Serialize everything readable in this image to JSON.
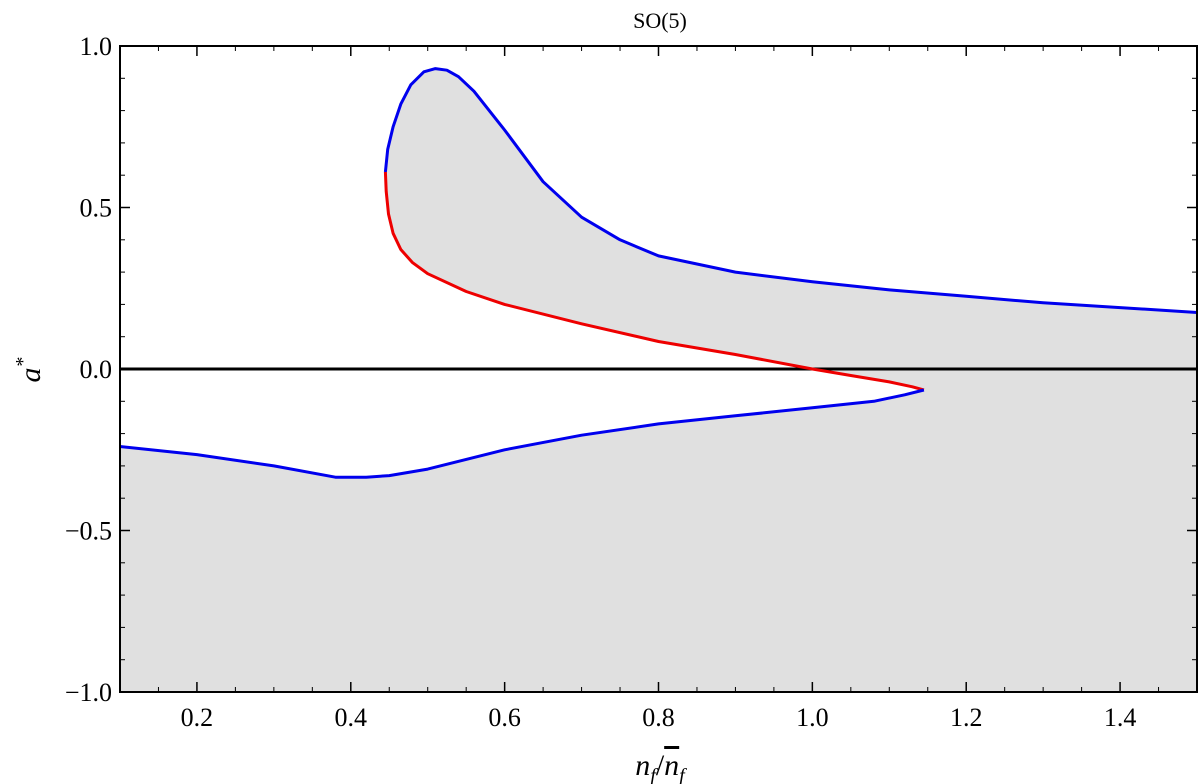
{
  "chart_data": {
    "type": "line",
    "title": "SO(5)",
    "xlabel": "n_f/n̄_f",
    "ylabel": "a*",
    "xlim": [
      0.1,
      1.5
    ],
    "ylim": [
      -1.0,
      1.0
    ],
    "xticks": [
      0.2,
      0.4,
      0.6,
      0.8,
      1.0,
      1.2,
      1.4
    ],
    "xtick_labels": [
      "0.2",
      "0.4",
      "0.6",
      "0.8",
      "1.0",
      "1.2",
      "1.4"
    ],
    "yticks": [
      -1.0,
      -0.5,
      0.0,
      0.5,
      1.0
    ],
    "ytick_labels": [
      "−1.0",
      "−0.5",
      "0.0",
      "0.5",
      "1.0"
    ],
    "grid": false,
    "shaded_region_color": "#e0e0e0",
    "series": [
      {
        "color": "#0000ee",
        "points": [
          [
            0.445,
            0.61
          ],
          [
            0.448,
            0.68
          ],
          [
            0.455,
            0.75
          ],
          [
            0.465,
            0.82
          ],
          [
            0.478,
            0.88
          ],
          [
            0.495,
            0.92
          ],
          [
            0.51,
            0.93
          ],
          [
            0.525,
            0.925
          ],
          [
            0.54,
            0.905
          ],
          [
            0.56,
            0.86
          ],
          [
            0.6,
            0.74
          ],
          [
            0.65,
            0.58
          ],
          [
            0.7,
            0.47
          ],
          [
            0.75,
            0.4
          ],
          [
            0.8,
            0.35
          ],
          [
            0.9,
            0.3
          ],
          [
            1.0,
            0.27
          ],
          [
            1.1,
            0.245
          ],
          [
            1.2,
            0.225
          ],
          [
            1.3,
            0.205
          ],
          [
            1.4,
            0.19
          ],
          [
            1.5,
            0.175
          ]
        ]
      },
      {
        "color": "#ee0000",
        "points": [
          [
            0.445,
            0.61
          ],
          [
            0.446,
            0.55
          ],
          [
            0.449,
            0.48
          ],
          [
            0.455,
            0.42
          ],
          [
            0.465,
            0.37
          ],
          [
            0.48,
            0.33
          ],
          [
            0.5,
            0.295
          ],
          [
            0.55,
            0.24
          ],
          [
            0.6,
            0.2
          ],
          [
            0.7,
            0.14
          ],
          [
            0.8,
            0.085
          ],
          [
            0.9,
            0.045
          ],
          [
            1.0,
            0.0
          ],
          [
            1.05,
            -0.02
          ],
          [
            1.1,
            -0.04
          ],
          [
            1.13,
            -0.055
          ],
          [
            1.145,
            -0.065
          ]
        ]
      },
      {
        "color": "#0000ee",
        "points": [
          [
            1.145,
            -0.065
          ],
          [
            1.12,
            -0.08
          ],
          [
            1.08,
            -0.1
          ],
          [
            1.0,
            -0.12
          ],
          [
            0.9,
            -0.145
          ],
          [
            0.8,
            -0.17
          ],
          [
            0.7,
            -0.205
          ],
          [
            0.6,
            -0.25
          ],
          [
            0.5,
            -0.31
          ],
          [
            0.45,
            -0.33
          ],
          [
            0.42,
            -0.335
          ],
          [
            0.38,
            -0.335
          ],
          [
            0.3,
            -0.3
          ],
          [
            0.2,
            -0.265
          ],
          [
            0.1,
            -0.24
          ]
        ]
      }
    ],
    "zero_line": 0.0
  }
}
